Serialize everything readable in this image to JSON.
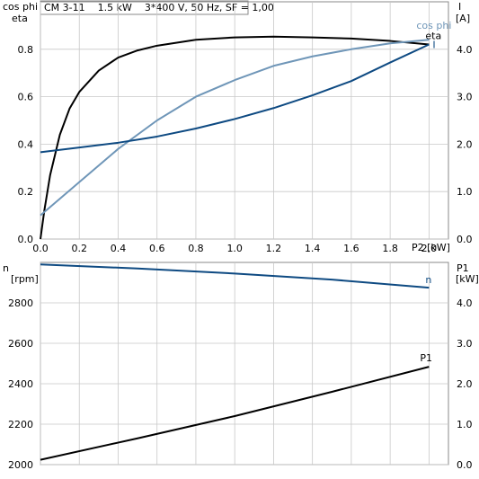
{
  "chart_data": [
    {
      "type": "line",
      "title": "CM 3-11    1.5 kW    3*400 V, 50 Hz, SF = 1,00",
      "xlabel": "P2 [kW]",
      "ylabel_left_top": "cos phi",
      "ylabel_left_bottom": "eta",
      "ylabel_right_top": "I",
      "ylabel_right_bottom": "[A]",
      "xlim": [
        0,
        2.1
      ],
      "ylim_left": [
        0,
        1.0
      ],
      "ylim_right": [
        0,
        5.0
      ],
      "x_ticks": [
        "0.0",
        "0.2",
        "0.4",
        "0.6",
        "0.8",
        "1.0",
        "1.2",
        "1.4",
        "1.6",
        "1.8",
        "2.0"
      ],
      "x_tick_values": [
        0,
        0.2,
        0.4,
        0.6,
        0.8,
        1.0,
        1.2,
        1.4,
        1.6,
        1.8,
        2.0
      ],
      "y_left_ticks": [
        "0.0",
        "0.2",
        "0.4",
        "0.6",
        "0.8"
      ],
      "y_left_tick_values": [
        0,
        0.2,
        0.4,
        0.6,
        0.8
      ],
      "y_right_ticks": [
        "0.0",
        "1.0",
        "2.0",
        "3.0",
        "4.0"
      ],
      "y_right_tick_values": [
        0,
        1.0,
        2.0,
        3.0,
        4.0
      ],
      "grid": true,
      "series": [
        {
          "name": "eta",
          "axis": "left",
          "color": "#000000",
          "x": [
            0,
            0.02,
            0.05,
            0.1,
            0.15,
            0.2,
            0.3,
            0.4,
            0.5,
            0.6,
            0.8,
            1.0,
            1.2,
            1.4,
            1.6,
            1.8,
            2.0
          ],
          "y": [
            0,
            0.12,
            0.27,
            0.44,
            0.55,
            0.62,
            0.71,
            0.765,
            0.795,
            0.815,
            0.84,
            0.85,
            0.853,
            0.85,
            0.845,
            0.835,
            0.82
          ]
        },
        {
          "name": "cos phi",
          "axis": "left",
          "color": "#6f96b8",
          "x": [
            0,
            0.2,
            0.4,
            0.6,
            0.8,
            1.0,
            1.2,
            1.4,
            1.6,
            1.8,
            2.0
          ],
          "y": [
            0.1,
            0.24,
            0.38,
            0.5,
            0.6,
            0.67,
            0.73,
            0.77,
            0.8,
            0.825,
            0.84
          ]
        },
        {
          "name": "I",
          "axis": "right",
          "color": "#0e4a82",
          "x": [
            0,
            0.2,
            0.4,
            0.6,
            0.8,
            1.0,
            1.2,
            1.4,
            1.6,
            1.8,
            2.0
          ],
          "y": [
            1.83,
            1.93,
            2.03,
            2.16,
            2.33,
            2.53,
            2.76,
            3.03,
            3.33,
            3.72,
            4.1
          ]
        }
      ]
    },
    {
      "type": "line",
      "xlabel": "",
      "ylabel_left_top": "n",
      "ylabel_left_bottom": "[rpm]",
      "ylabel_right_top": "P1",
      "ylabel_right_bottom": "[kW]",
      "xlim": [
        0,
        2.1
      ],
      "ylim_left": [
        2000,
        3000
      ],
      "ylim_right": [
        0,
        5.0
      ],
      "y_left_ticks": [
        "2000",
        "2200",
        "2400",
        "2600",
        "2800"
      ],
      "y_left_tick_values": [
        2000,
        2200,
        2400,
        2600,
        2800
      ],
      "y_right_ticks": [
        "0.0",
        "1.0",
        "2.0",
        "3.0",
        "4.0"
      ],
      "y_right_tick_values": [
        0,
        1.0,
        2.0,
        3.0,
        4.0
      ],
      "grid": true,
      "series": [
        {
          "name": "n",
          "axis": "left",
          "color": "#0e4a82",
          "x": [
            0,
            0.5,
            1.0,
            1.5,
            2.0
          ],
          "y": [
            2990,
            2970,
            2945,
            2915,
            2875
          ]
        },
        {
          "name": "P1",
          "axis": "right",
          "color": "#000000",
          "x": [
            0,
            0.5,
            1.0,
            1.5,
            2.0
          ],
          "y": [
            0.12,
            0.65,
            1.2,
            1.8,
            2.42
          ]
        }
      ]
    }
  ]
}
